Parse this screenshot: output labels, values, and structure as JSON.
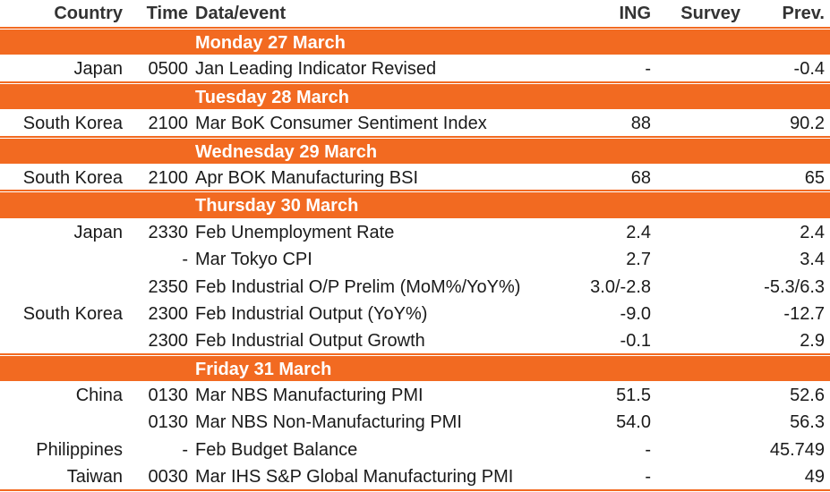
{
  "header": {
    "country": "Country",
    "time": "Time",
    "event": "Data/event",
    "ing": "ING",
    "survey": "Survey",
    "prev": "Prev."
  },
  "days": [
    {
      "label": "Monday 27 March",
      "rows": [
        {
          "country": "Japan",
          "time": "0500",
          "event": "Jan Leading Indicator Revised",
          "ing": "-",
          "survey": "",
          "prev": "-0.4"
        }
      ]
    },
    {
      "label": "Tuesday 28 March",
      "rows": [
        {
          "country": "South Korea",
          "time": "2100",
          "event": "Mar BoK Consumer Sentiment Index",
          "ing": "88",
          "survey": "",
          "prev": "90.2"
        }
      ]
    },
    {
      "label": "Wednesday 29 March",
      "rows": [
        {
          "country": "South Korea",
          "time": "2100",
          "event": "Apr BOK Manufacturing BSI",
          "ing": "68",
          "survey": "",
          "prev": "65"
        }
      ]
    },
    {
      "label": "Thursday 30 March",
      "rows": [
        {
          "country": "Japan",
          "time": "2330",
          "event": "Feb Unemployment Rate",
          "ing": "2.4",
          "survey": "",
          "prev": "2.4"
        },
        {
          "country": "",
          "time": "-",
          "event": "Mar Tokyo CPI",
          "ing": "2.7",
          "survey": "",
          "prev": "3.4"
        },
        {
          "country": "",
          "time": "2350",
          "event": "Feb Industrial O/P Prelim (MoM%/YoY%)",
          "ing": "3.0/-2.8",
          "survey": "",
          "prev": "-5.3/6.3"
        },
        {
          "country": "South Korea",
          "time": "2300",
          "event": "Feb Industrial Output (YoY%)",
          "ing": "-9.0",
          "survey": "",
          "prev": "-12.7"
        },
        {
          "country": "",
          "time": "2300",
          "event": "Feb Industrial Output Growth",
          "ing": "-0.1",
          "survey": "",
          "prev": "2.9"
        }
      ]
    },
    {
      "label": "Friday 31 March",
      "rows": [
        {
          "country": "China",
          "time": "0130",
          "event": "Mar NBS Manufacturing PMI",
          "ing": "51.5",
          "survey": "",
          "prev": "52.6"
        },
        {
          "country": "",
          "time": "0130",
          "event": "Mar NBS Non-Manufacturing PMI",
          "ing": "54.0",
          "survey": "",
          "prev": "56.3"
        },
        {
          "country": "Philippines",
          "time": "-",
          "event": "Feb Budget Balance",
          "ing": "-",
          "survey": "",
          "prev": "45.749"
        },
        {
          "country": "Taiwan",
          "time": "0030",
          "event": "Mar IHS S&P Global Manufacturing PMI",
          "ing": "-",
          "survey": "",
          "prev": "49"
        }
      ]
    }
  ]
}
